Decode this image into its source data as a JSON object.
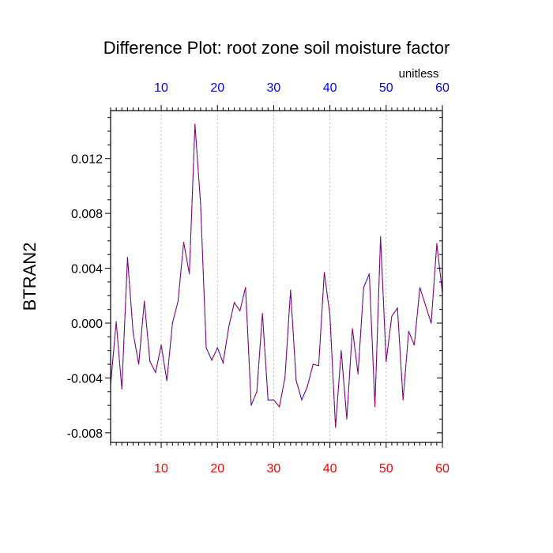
{
  "chart_data": {
    "type": "line",
    "title": "Difference Plot: root zone soil moisture factor",
    "units": "unitless",
    "ylabel": "BTRAN2",
    "xlabel": "",
    "xlim": [
      1,
      60
    ],
    "ylim": [
      -0.0087,
      0.0155
    ],
    "x_ticks": [
      10,
      20,
      30,
      40,
      50,
      60
    ],
    "x_tick_labels": [
      "10",
      "20",
      "30",
      "40",
      "50",
      "60"
    ],
    "y_ticks": [
      -0.008,
      -0.004,
      0.0,
      0.004,
      0.008,
      0.012
    ],
    "y_tick_labels": [
      "-0.008",
      "-0.004",
      "0.000",
      "0.004",
      "0.008",
      "0.012"
    ],
    "vertical_grid": true,
    "colors": {
      "bottom_axis_labels": "#ff0000",
      "top_axis_labels": "#0000ff",
      "line_primary": "#0000ff",
      "line_overlay": "#ff0000",
      "grid": "#b0b0b0"
    },
    "series": [
      {
        "x": [
          1,
          2,
          3,
          4,
          5,
          6,
          7,
          8,
          9,
          10,
          11,
          12,
          13,
          14,
          15,
          16,
          17,
          18,
          19,
          20,
          21,
          22,
          23,
          24,
          25,
          26,
          27,
          28,
          29,
          30,
          31,
          32,
          33,
          34,
          35,
          36,
          37,
          38,
          39,
          40,
          41,
          42,
          43,
          44,
          45,
          46,
          47,
          48,
          49,
          50,
          51,
          52,
          53,
          54,
          55,
          56,
          57,
          58,
          59,
          60
        ],
        "values": [
          -0.0045,
          0.0001,
          -0.0048,
          0.0048,
          -0.0007,
          -0.003,
          0.0016,
          -0.0028,
          -0.0036,
          -0.0016,
          -0.0042,
          0.0,
          0.0016,
          0.0059,
          0.0036,
          0.0145,
          0.0087,
          -0.0018,
          -0.0027,
          -0.0018,
          -0.0029,
          -0.0003,
          0.0015,
          0.0009,
          0.0026,
          -0.006,
          -0.005,
          0.0007,
          -0.0056,
          -0.0056,
          -0.0061,
          -0.004,
          0.0024,
          -0.0042,
          -0.0056,
          -0.0046,
          -0.003,
          -0.0031,
          0.0037,
          0.0006,
          -0.0076,
          -0.002,
          -0.007,
          -0.0004,
          -0.0037,
          0.0026,
          0.0036,
          -0.0061,
          0.0063,
          -0.0028,
          0.0005,
          0.0011,
          -0.0056,
          -0.0006,
          -0.0016,
          0.0026,
          0.0013,
          0.0,
          0.0058,
          0.0022
        ]
      }
    ]
  }
}
